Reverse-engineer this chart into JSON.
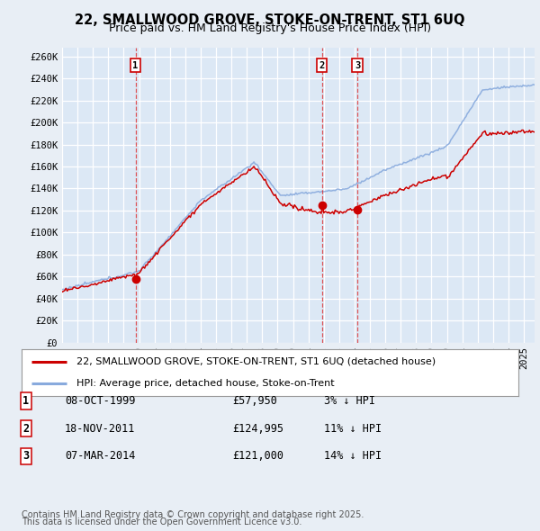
{
  "title": "22, SMALLWOOD GROVE, STOKE-ON-TRENT, ST1 6UQ",
  "subtitle": "Price paid vs. HM Land Registry's House Price Index (HPI)",
  "ylabel_ticks": [
    "£0",
    "£20K",
    "£40K",
    "£60K",
    "£80K",
    "£100K",
    "£120K",
    "£140K",
    "£160K",
    "£180K",
    "£200K",
    "£220K",
    "£240K",
    "£260K"
  ],
  "ytick_values": [
    0,
    20000,
    40000,
    60000,
    80000,
    100000,
    120000,
    140000,
    160000,
    180000,
    200000,
    220000,
    240000,
    260000
  ],
  "ylim": [
    0,
    268000
  ],
  "xlim_start": 1995.0,
  "xlim_end": 2025.7,
  "sale_color": "#cc0000",
  "hpi_color": "#88aadd",
  "sale_label": "22, SMALLWOOD GROVE, STOKE-ON-TRENT, ST1 6UQ (detached house)",
  "hpi_label": "HPI: Average price, detached house, Stoke-on-Trent",
  "transactions": [
    {
      "num": 1,
      "date_label": "08-OCT-1999",
      "price": 57950,
      "pct": "3%",
      "date_x": 1999.77
    },
    {
      "num": 2,
      "date_label": "18-NOV-2011",
      "price": 124995,
      "pct": "11%",
      "date_x": 2011.88
    },
    {
      "num": 3,
      "date_label": "07-MAR-2014",
      "price": 121000,
      "pct": "14%",
      "date_x": 2014.18
    }
  ],
  "footer1": "Contains HM Land Registry data © Crown copyright and database right 2025.",
  "footer2": "This data is licensed under the Open Government Licence v3.0.",
  "background_color": "#e8eef5",
  "plot_bg_color": "#dce8f5",
  "grid_color": "#ffffff",
  "legend_box_color": "#ffffff",
  "title_fontsize": 10.5,
  "subtitle_fontsize": 9,
  "tick_fontsize": 7.5,
  "legend_fontsize": 8,
  "table_fontsize": 8.5,
  "footer_fontsize": 7
}
